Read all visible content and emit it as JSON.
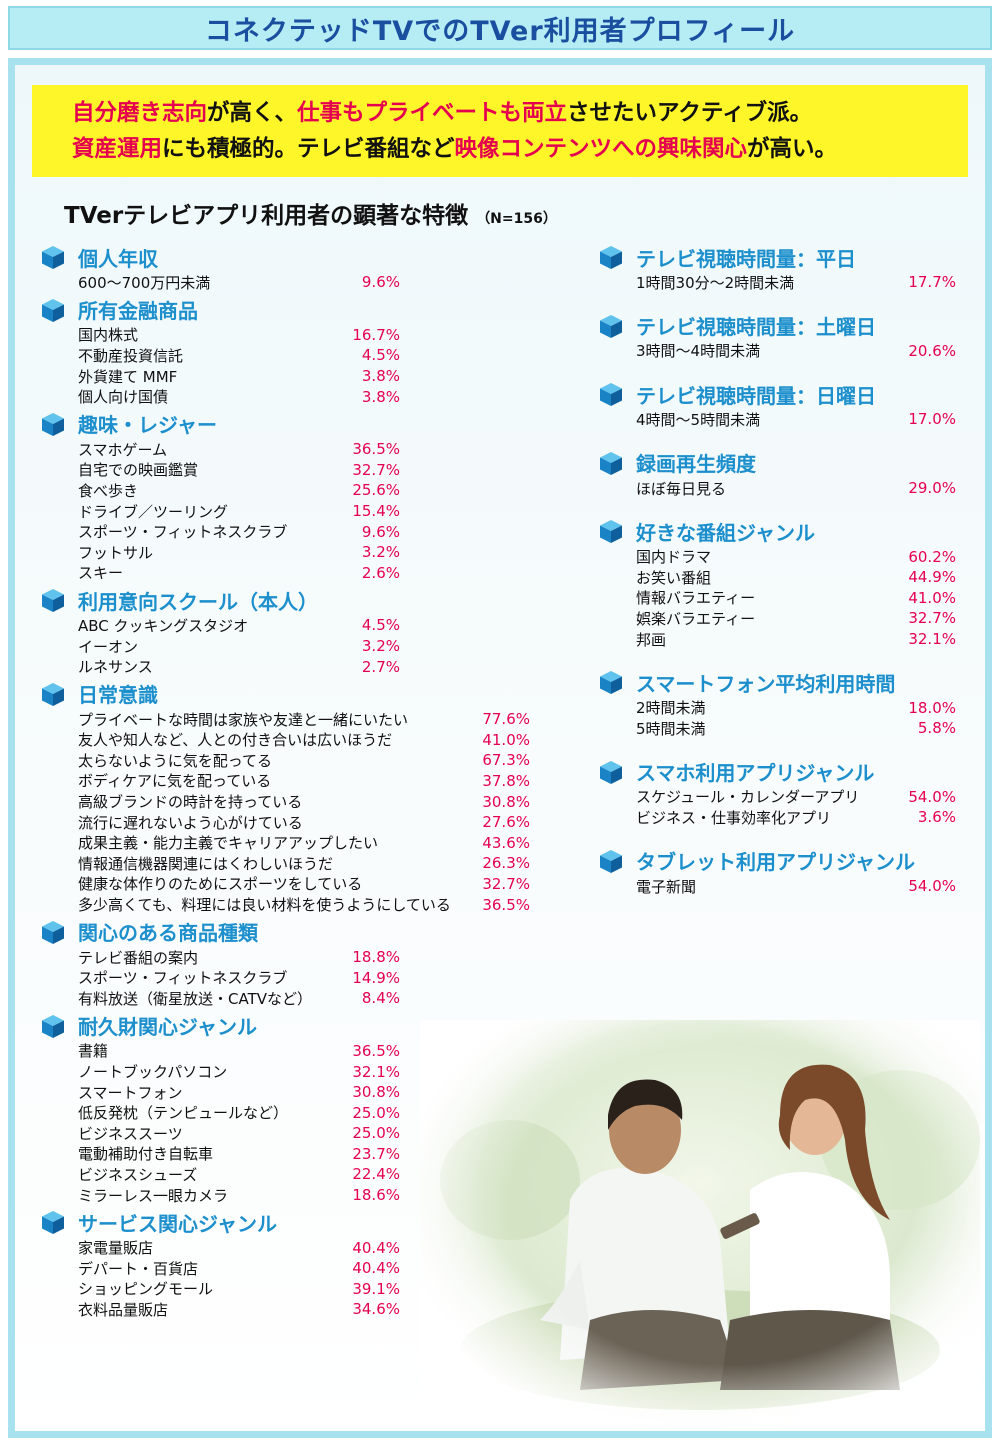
{
  "title": "コネクテッドTVでのTVer利用者プロフィール",
  "headline": {
    "line1": [
      {
        "t": "自分磨き志向",
        "hl": true
      },
      {
        "t": "が高く、",
        "hl": false
      },
      {
        "t": "仕事もプライベートも両立",
        "hl": true
      },
      {
        "t": "させたいアクティブ派。",
        "hl": false
      }
    ],
    "line2": [
      {
        "t": "資産運用",
        "hl": true
      },
      {
        "t": "にも積極的。テレビ番組など",
        "hl": false
      },
      {
        "t": "映像コンテンツへの興味関心",
        "hl": true
      },
      {
        "t": "が高い。",
        "hl": false
      }
    ]
  },
  "subtitle": "TVerテレビアプリ利用者の顕著な特徴",
  "sample": "（N=156）",
  "left_sections": [
    {
      "title": "個人年収",
      "items": [
        {
          "label": "600〜700万円未満",
          "value": "9.6%"
        }
      ]
    },
    {
      "title": "所有金融商品",
      "items": [
        {
          "label": "国内株式",
          "value": "16.7%"
        },
        {
          "label": "不動産投資信託",
          "value": "4.5%"
        },
        {
          "label": "外貨建て MMF",
          "value": "3.8%"
        },
        {
          "label": "個人向け国債",
          "value": "3.8%"
        }
      ]
    },
    {
      "title": "趣味・レジャー",
      "items": [
        {
          "label": "スマホゲーム",
          "value": "36.5%"
        },
        {
          "label": "自宅での映画鑑賞",
          "value": "32.7%"
        },
        {
          "label": "食べ歩き",
          "value": "25.6%"
        },
        {
          "label": "ドライブ／ツーリング",
          "value": "15.4%"
        },
        {
          "label": "スポーツ・フィットネスクラブ",
          "value": "9.6%"
        },
        {
          "label": "フットサル",
          "value": "3.2%"
        },
        {
          "label": "スキー",
          "value": "2.6%"
        }
      ]
    },
    {
      "title": "利用意向スクール（本人）",
      "items": [
        {
          "label": "ABC クッキングスタジオ",
          "value": "4.5%"
        },
        {
          "label": "イーオン",
          "value": "3.2%"
        },
        {
          "label": "ルネサンス",
          "value": "2.7%"
        }
      ]
    },
    {
      "title": "日常意識",
      "wide": true,
      "items": [
        {
          "label": "プライベートな時間は家族や友達と一緒にいたい",
          "value": "77.6%"
        },
        {
          "label": "友人や知人など、人との付き合いは広いほうだ",
          "value": "41.0%"
        },
        {
          "label": "太らないように気を配ってる",
          "value": "67.3%"
        },
        {
          "label": "ボディケアに気を配っている",
          "value": "37.8%"
        },
        {
          "label": "高級ブランドの時計を持っている",
          "value": "30.8%"
        },
        {
          "label": "流行に遅れないよう心がけている",
          "value": "27.6%"
        },
        {
          "label": "成果主義・能力主義でキャリアアップしたい",
          "value": "43.6%"
        },
        {
          "label": "情報通信機器関連にはくわしいほうだ",
          "value": "26.3%"
        },
        {
          "label": "健康な体作りのためにスポーツをしている",
          "value": "32.7%"
        },
        {
          "label": "多少高くても、料理には良い材料を使うようにしている",
          "value": "36.5%"
        }
      ]
    },
    {
      "title": "関心のある商品種類",
      "items": [
        {
          "label": "テレビ番組の案内",
          "value": "18.8%"
        },
        {
          "label": "スポーツ・フィットネスクラブ",
          "value": "14.9%"
        },
        {
          "label": "有料放送（衛星放送・CATVなど）",
          "value": "8.4%"
        }
      ]
    },
    {
      "title": "耐久財関心ジャンル",
      "items": [
        {
          "label": "書籍",
          "value": "36.5%"
        },
        {
          "label": "ノートブックパソコン",
          "value": "32.1%"
        },
        {
          "label": "スマートフォン",
          "value": "30.8%"
        },
        {
          "label": "低反発枕（テンピュールなど）",
          "value": "25.0%"
        },
        {
          "label": "ビジネススーツ",
          "value": "25.0%"
        },
        {
          "label": "電動補助付き自転車",
          "value": "23.7%"
        },
        {
          "label": "ビジネスシューズ",
          "value": "22.4%"
        },
        {
          "label": "ミラーレス一眼カメラ",
          "value": "18.6%"
        }
      ]
    },
    {
      "title": "サービス関心ジャンル",
      "items": [
        {
          "label": "家電量販店",
          "value": "40.4%"
        },
        {
          "label": "デパート・百貨店",
          "value": "40.4%"
        },
        {
          "label": "ショッピングモール",
          "value": "39.1%"
        },
        {
          "label": "衣料品量販店",
          "value": "34.6%"
        }
      ]
    }
  ],
  "right_sections": [
    {
      "title": "テレビ視聴時間量：平日",
      "items": [
        {
          "label": "1時間30分〜2時間未満",
          "value": "17.7%"
        }
      ]
    },
    {
      "title": "テレビ視聴時間量：土曜日",
      "items": [
        {
          "label": "3時間〜4時間未満",
          "value": "20.6%"
        }
      ]
    },
    {
      "title": "テレビ視聴時間量：日曜日",
      "items": [
        {
          "label": "4時間〜5時間未満",
          "value": "17.0%"
        }
      ]
    },
    {
      "title": "録画再生頻度",
      "items": [
        {
          "label": "ほぼ毎日見る",
          "value": "29.0%"
        }
      ]
    },
    {
      "title": "好きな番組ジャンル",
      "items": [
        {
          "label": "国内ドラマ",
          "value": "60.2%"
        },
        {
          "label": "お笑い番組",
          "value": "44.9%"
        },
        {
          "label": "情報バラエティー",
          "value": "41.0%"
        },
        {
          "label": "娯楽バラエティー",
          "value": "32.7%"
        },
        {
          "label": "邦画",
          "value": "32.1%"
        }
      ]
    },
    {
      "title": "スマートフォン平均利用時間",
      "items": [
        {
          "label": "2時間未満",
          "value": "18.0%"
        },
        {
          "label": "5時間未満",
          "value": "5.8%"
        }
      ]
    },
    {
      "title": "スマホ利用アプリジャンル",
      "items": [
        {
          "label": "スケジュール・カレンダーアプリ",
          "value": "54.0%"
        },
        {
          "label": "ビジネス・仕事効率化アプリ",
          "value": "3.6%"
        }
      ]
    },
    {
      "title": "タブレット利用アプリジャンル",
      "items": [
        {
          "label": "電子新聞",
          "value": "54.0%"
        }
      ]
    }
  ],
  "colors": {
    "accent_blue": "#1c8fcc",
    "value_red": "#e5004f",
    "headline_yellow": "#fff62a",
    "title_bg": "#b6ecf4"
  },
  "icons": {
    "bullet": "blue-cube-icon",
    "photo": "couple-photo"
  }
}
